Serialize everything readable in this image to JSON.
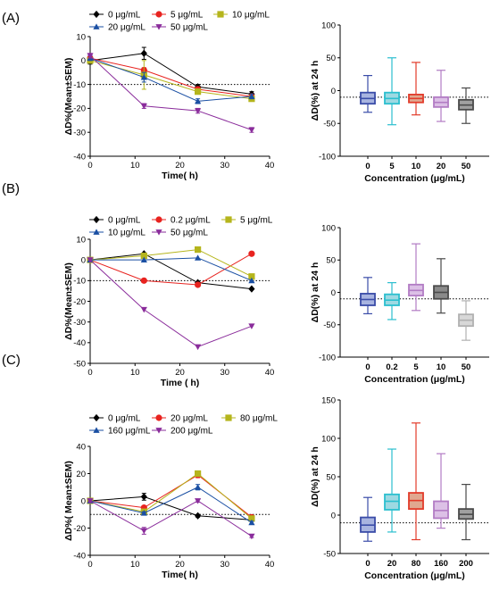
{
  "panels": [
    {
      "label": "(A)",
      "line_chart": {
        "type": "line",
        "xlabel": "Time( h)",
        "ylabel": "ΔD%(Mean±SEM)",
        "xlim": [
          0,
          40
        ],
        "ylim": [
          -40,
          10
        ],
        "xticks": [
          0,
          10,
          20,
          30,
          40
        ],
        "yticks": [
          10,
          0,
          -10,
          -20,
          -30,
          -40
        ],
        "reference_line": -10,
        "x": [
          0,
          12,
          24,
          36
        ],
        "legend_rows": [
          [
            0,
            1,
            2
          ],
          [
            3,
            4
          ]
        ],
        "series": [
          {
            "name": "0 μg/mL",
            "color": "#000000",
            "marker": "diamond",
            "values": [
              0,
              3,
              -11,
              -14
            ],
            "errors": [
              1.5,
              2.5,
              1,
              1
            ]
          },
          {
            "name": "5 μg/mL",
            "color": "#e8231f",
            "marker": "circle",
            "values": [
              1,
              -4,
              -12,
              -15
            ],
            "errors": [
              1,
              1,
              1,
              1
            ]
          },
          {
            "name": "10 μg/mL",
            "color": "#b5b51c",
            "marker": "square",
            "values": [
              0,
              -6,
              -13,
              -16
            ],
            "errors": [
              1,
              6,
              1,
              1
            ]
          },
          {
            "name": "20 μg/mL",
            "color": "#1a4fa3",
            "marker": "triangle-up",
            "values": [
              1,
              -7,
              -17,
              -15
            ],
            "errors": [
              1,
              2,
              1,
              1
            ]
          },
          {
            "name": "50 μg/mL",
            "color": "#8a2c9b",
            "marker": "triangle-down",
            "values": [
              2,
              -19,
              -21,
              -29
            ],
            "errors": [
              1,
              1,
              1,
              1
            ]
          }
        ]
      },
      "box_chart": {
        "type": "box",
        "ylabel": "ΔD(%) at 24 h",
        "xlabel": "Concentration (μg/mL)",
        "ylim": [
          -100,
          100
        ],
        "yticks": [
          100,
          50,
          0,
          -50,
          -100
        ],
        "reference_line": -10,
        "categories": [
          "0",
          "5",
          "10",
          "20",
          "50"
        ],
        "boxes": [
          {
            "min": -33,
            "q1": -20,
            "median": -12,
            "q3": -3,
            "max": 23,
            "edge": "#3a4ca8",
            "fill": "#a8b4e0"
          },
          {
            "min": -52,
            "q1": -20,
            "median": -12,
            "q3": -3,
            "max": 50,
            "edge": "#2bbfcf",
            "fill": "#9dd9e2"
          },
          {
            "min": -37,
            "q1": -18,
            "median": -12,
            "q3": -6,
            "max": 43,
            "edge": "#e23b2a",
            "fill": "#e0a890"
          },
          {
            "min": -47,
            "q1": -25,
            "median": -18,
            "q3": -10,
            "max": 31,
            "edge": "#b27cc4",
            "fill": "#dcc0e6"
          },
          {
            "min": -50,
            "q1": -29,
            "median": -22,
            "q3": -14,
            "max": 4,
            "edge": "#4a4a4a",
            "fill": "#a0a0a0"
          }
        ]
      }
    },
    {
      "label": "(B)",
      "line_chart": {
        "type": "line",
        "xlabel": "Time ( h)",
        "ylabel": "ΔD%(Mean±SEM)",
        "xlim": [
          0,
          40
        ],
        "ylim": [
          -50,
          10
        ],
        "xticks": [
          0,
          10,
          20,
          30,
          40
        ],
        "yticks": [
          10,
          0,
          -10,
          -20,
          -30,
          -40,
          -50
        ],
        "reference_line": -10,
        "x": [
          0,
          12,
          24,
          36
        ],
        "legend_rows": [
          [
            0,
            1,
            2
          ],
          [
            3,
            4
          ]
        ],
        "series": [
          {
            "name": "0 μg/mL",
            "color": "#000000",
            "marker": "diamond",
            "values": [
              0,
              3,
              -11,
              -14
            ],
            "errors": [
              0,
              0,
              0,
              0
            ]
          },
          {
            "name": "0.2 μg/mL",
            "color": "#e8231f",
            "marker": "circle",
            "values": [
              0,
              -10,
              -12,
              3
            ],
            "errors": [
              0,
              0,
              0,
              0
            ]
          },
          {
            "name": "5 μg/mL",
            "color": "#b5b51c",
            "marker": "square",
            "values": [
              0,
              2,
              5,
              -8
            ],
            "errors": [
              0,
              0,
              0,
              0
            ]
          },
          {
            "name": "10 μg/mL",
            "color": "#1a4fa3",
            "marker": "triangle-up",
            "values": [
              0,
              0,
              1,
              -10
            ],
            "errors": [
              0,
              0,
              0,
              0
            ]
          },
          {
            "name": "50 μg/mL",
            "color": "#8a2c9b",
            "marker": "triangle-down",
            "values": [
              0,
              -24,
              -42,
              -32
            ],
            "errors": [
              0,
              0,
              0,
              0
            ]
          }
        ]
      },
      "box_chart": {
        "type": "box",
        "ylabel": "ΔD(%) at 24 h",
        "xlabel": "Concentration (μg/mL)",
        "ylim": [
          -100,
          100
        ],
        "yticks": [
          100,
          50,
          0,
          -50,
          -100
        ],
        "reference_line": -10,
        "categories": [
          "0",
          "0.2",
          "5",
          "10",
          "50"
        ],
        "boxes": [
          {
            "min": -33,
            "q1": -20,
            "median": -11,
            "q3": -2,
            "max": 23,
            "edge": "#3a4ca8",
            "fill": "#a8b4e0"
          },
          {
            "min": -42,
            "q1": -20,
            "median": -12,
            "q3": -3,
            "max": 15,
            "edge": "#2bbfcf",
            "fill": "#9dd9e2"
          },
          {
            "min": -28,
            "q1": -5,
            "median": 3,
            "q3": 12,
            "max": 75,
            "edge": "#b27cc4",
            "fill": "#dcc0e6"
          },
          {
            "min": -32,
            "q1": -10,
            "median": 0,
            "q3": 10,
            "max": 52,
            "edge": "#4a4a4a",
            "fill": "#8a8a8a"
          },
          {
            "min": -74,
            "q1": -52,
            "median": -43,
            "q3": -34,
            "max": -13,
            "edge": "#b0b0b0",
            "fill": "#d8d8d8"
          }
        ]
      }
    },
    {
      "label": "(C)",
      "line_chart": {
        "type": "line",
        "xlabel": "Time( h)",
        "ylabel": "ΔD%( Mean±SEM)",
        "xlim": [
          0,
          40
        ],
        "ylim": [
          -40,
          40
        ],
        "xticks": [
          0,
          10,
          20,
          30,
          40
        ],
        "yticks": [
          40,
          20,
          0,
          -20,
          -40
        ],
        "reference_line": -10,
        "x": [
          0,
          12,
          24,
          36
        ],
        "legend_rows": [
          [
            0,
            1,
            2
          ],
          [
            3,
            4
          ]
        ],
        "series": [
          {
            "name": "0 μg/mL",
            "color": "#000000",
            "marker": "diamond",
            "values": [
              0,
              3,
              -11,
              -14
            ],
            "errors": [
              1.5,
              2.5,
              1,
              1
            ]
          },
          {
            "name": "20 μg/mL",
            "color": "#e8231f",
            "marker": "circle",
            "values": [
              0,
              -5,
              19,
              -12
            ],
            "errors": [
              1,
              1,
              2,
              1
            ]
          },
          {
            "name": "80 μg/mL",
            "color": "#b5b51c",
            "marker": "square",
            "values": [
              0,
              -8,
              20,
              -13
            ],
            "errors": [
              1,
              1,
              2,
              1
            ]
          },
          {
            "name": "160 μg/mL",
            "color": "#1a4fa3",
            "marker": "triangle-up",
            "values": [
              0,
              -9,
              10,
              -16
            ],
            "errors": [
              1,
              1,
              2,
              1
            ]
          },
          {
            "name": "200 μg/mL",
            "color": "#8a2c9b",
            "marker": "triangle-down",
            "values": [
              0,
              -22,
              0,
              -26
            ],
            "errors": [
              1,
              2.5,
              1,
              1
            ]
          }
        ]
      },
      "box_chart": {
        "type": "box",
        "ylabel": "ΔD(%) at 24 h",
        "xlabel": "Concentration (μg/mL)",
        "ylim": [
          -50,
          150
        ],
        "yticks": [
          150,
          100,
          50,
          0,
          -50
        ],
        "reference_line": -10,
        "categories": [
          "0",
          "20",
          "80",
          "160",
          "200"
        ],
        "boxes": [
          {
            "min": -34,
            "q1": -22,
            "median": -13,
            "q3": -3,
            "max": 23,
            "edge": "#3a4ca8",
            "fill": "#a8b4e0"
          },
          {
            "min": -22,
            "q1": 7,
            "median": 18,
            "q3": 27,
            "max": 86,
            "edge": "#2bbfcf",
            "fill": "#9dd9e2"
          },
          {
            "min": -32,
            "q1": 8,
            "median": 19,
            "q3": 29,
            "max": 120,
            "edge": "#e23b2a",
            "fill": "#e0a890"
          },
          {
            "min": -17,
            "q1": -4,
            "median": 6,
            "q3": 18,
            "max": 80,
            "edge": "#b27cc4",
            "fill": "#dcc0e6"
          },
          {
            "min": -32,
            "q1": -5,
            "median": 1,
            "q3": 8,
            "max": 40,
            "edge": "#4a4a4a",
            "fill": "#a0a0a0"
          }
        ]
      }
    }
  ]
}
